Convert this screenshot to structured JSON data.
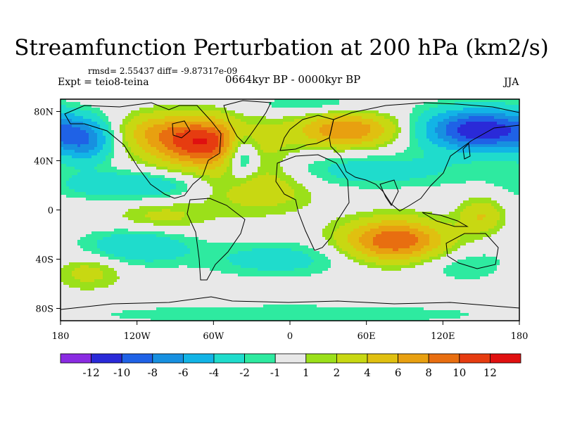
{
  "chart_data": {
    "type": "heatmap",
    "title": "Streamfunction Perturbation at 200 hPa (km2/s)",
    "stats": "rmsd= 2.55437  diff= -9.87317e-09",
    "left_label": "Expt = teio8-teina",
    "center_label": "0664kyr BP - 0000kyr BP",
    "right_label": "JJA",
    "xlim": [
      -180,
      180
    ],
    "ylim": [
      -90,
      90
    ],
    "x_ticks": [
      {
        "value": -180,
        "label": "180"
      },
      {
        "value": -120,
        "label": "120W"
      },
      {
        "value": -60,
        "label": "60W"
      },
      {
        "value": 0,
        "label": "0"
      },
      {
        "value": 60,
        "label": "60E"
      },
      {
        "value": 120,
        "label": "120E"
      },
      {
        "value": 180,
        "label": "180"
      }
    ],
    "y_ticks": [
      {
        "value": 80,
        "label": "80N"
      },
      {
        "value": 40,
        "label": "40N"
      },
      {
        "value": 0,
        "label": "0"
      },
      {
        "value": -40,
        "label": "40S"
      },
      {
        "value": -80,
        "label": "80S"
      }
    ],
    "colorbar": {
      "levels": [
        -12,
        -10,
        -8,
        -6,
        -4,
        -2,
        -1,
        1,
        2,
        4,
        6,
        8,
        10,
        12
      ],
      "colors": [
        "#8a2be2",
        "#2a2ad8",
        "#1f62e6",
        "#1790e0",
        "#12b4e6",
        "#1fdccc",
        "#2eeaa0",
        "#e8e8e8",
        "#9be01a",
        "#c8d812",
        "#e0c010",
        "#e8a010",
        "#e86e10",
        "#e63c10",
        "#e01010"
      ]
    },
    "anomalies": [
      {
        "lon": -68,
        "lat": 55,
        "value": 12,
        "sx": 30,
        "sy": 14
      },
      {
        "lon": 45,
        "lat": 65,
        "value": 8,
        "sx": 28,
        "sy": 10
      },
      {
        "lon": 82,
        "lat": -25,
        "value": 10,
        "sx": 28,
        "sy": 12
      },
      {
        "lon": -25,
        "lat": 20,
        "value": 4,
        "sx": 30,
        "sy": 15
      },
      {
        "lon": -110,
        "lat": 65,
        "value": 3,
        "sx": 20,
        "sy": 10
      },
      {
        "lon": 150,
        "lat": -5,
        "value": 4,
        "sx": 12,
        "sy": 10
      },
      {
        "lon": -160,
        "lat": -50,
        "value": 3,
        "sx": 20,
        "sy": 10
      },
      {
        "lon": -100,
        "lat": -5,
        "value": 2.5,
        "sx": 25,
        "sy": 8
      },
      {
        "lon": 150,
        "lat": 65,
        "value": -12,
        "sx": 32,
        "sy": 12
      },
      {
        "lon": -38,
        "lat": 47,
        "value": -7,
        "sx": 10,
        "sy": 14
      },
      {
        "lon": -160,
        "lat": 55,
        "value": -6,
        "sx": 15,
        "sy": 12
      },
      {
        "lon": -125,
        "lat": 20,
        "value": -4,
        "sx": 40,
        "sy": 8
      },
      {
        "lon": 60,
        "lat": 32,
        "value": -3,
        "sx": 60,
        "sy": 10
      },
      {
        "lon": -120,
        "lat": -30,
        "value": -4,
        "sx": 30,
        "sy": 10
      },
      {
        "lon": -10,
        "lat": -40,
        "value": -3,
        "sx": 40,
        "sy": 10
      },
      {
        "lon": 140,
        "lat": -45,
        "value": -2,
        "sx": 30,
        "sy": 10
      },
      {
        "lon": 20,
        "lat": 85,
        "value": -2,
        "sx": 40,
        "sy": 6
      },
      {
        "lon": 0,
        "lat": -85,
        "value": -2,
        "sx": 120,
        "sy": 6
      }
    ]
  }
}
